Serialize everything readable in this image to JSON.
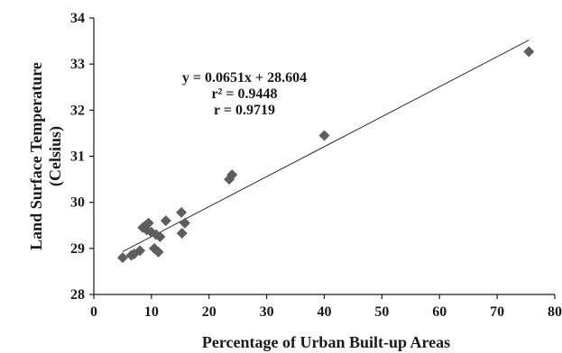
{
  "chart_data": {
    "type": "scatter",
    "title": "",
    "xlabel": "Percentage of Urban Built-up Areas",
    "ylabel_lines": [
      "Land Surface Temperature",
      "(Celsius)"
    ],
    "xlim": [
      0,
      80
    ],
    "ylim": [
      28,
      34
    ],
    "x_ticks": [
      0,
      10,
      20,
      30,
      40,
      50,
      60,
      70,
      80
    ],
    "y_ticks": [
      28,
      29,
      30,
      31,
      32,
      33,
      34
    ],
    "grid": false,
    "marker": "diamond",
    "marker_color": "#5e5e5e",
    "line_color": "#2f2f2f",
    "trendline": {
      "slope": 0.0651,
      "intercept": 28.604,
      "x_range": [
        5,
        75.5
      ]
    },
    "annotations": [
      "y = 0.0651x + 28.604",
      "r² = 0.9448",
      "r = 0.9719"
    ],
    "points": [
      {
        "x": 5.0,
        "y": 28.8
      },
      {
        "x": 6.5,
        "y": 28.85
      },
      {
        "x": 7.0,
        "y": 28.88
      },
      {
        "x": 8.0,
        "y": 28.95
      },
      {
        "x": 8.5,
        "y": 29.45
      },
      {
        "x": 9.0,
        "y": 29.5
      },
      {
        "x": 9.2,
        "y": 29.4
      },
      {
        "x": 9.5,
        "y": 29.55
      },
      {
        "x": 10.0,
        "y": 29.35
      },
      {
        "x": 10.5,
        "y": 29.0
      },
      {
        "x": 10.8,
        "y": 29.3
      },
      {
        "x": 11.2,
        "y": 28.92
      },
      {
        "x": 11.5,
        "y": 29.25
      },
      {
        "x": 12.5,
        "y": 29.6
      },
      {
        "x": 15.2,
        "y": 29.78
      },
      {
        "x": 15.3,
        "y": 29.33
      },
      {
        "x": 15.8,
        "y": 29.55
      },
      {
        "x": 23.5,
        "y": 30.5
      },
      {
        "x": 24.0,
        "y": 30.6
      },
      {
        "x": 40.0,
        "y": 31.45
      },
      {
        "x": 75.5,
        "y": 33.27
      }
    ]
  }
}
